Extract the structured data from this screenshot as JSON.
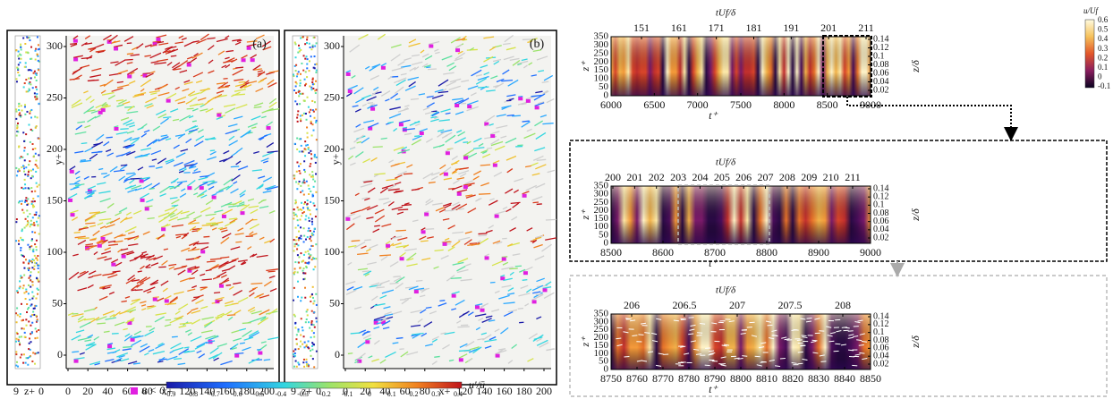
{
  "left_figure": {
    "panels": [
      {
        "label": "(a)",
        "y_label": "y+",
        "x_label": "x+",
        "strip_label": "z+",
        "strip_ticks": [
          9,
          0
        ],
        "y_ticks": [
          0,
          50,
          100,
          150,
          200,
          250,
          300
        ],
        "x_ticks": [
          0,
          20,
          40,
          60,
          80,
          120,
          140,
          160,
          180,
          200
        ]
      },
      {
        "label": "(b)",
        "y_label": "y+",
        "x_label": "x+",
        "strip_label": "z+",
        "strip_ticks": [
          9,
          0
        ],
        "y_ticks": [
          0,
          50,
          100,
          150,
          200,
          250,
          300
        ],
        "x_ticks": [
          0,
          20,
          40,
          60,
          80,
          120,
          140,
          160,
          180,
          200
        ]
      }
    ],
    "colorbar": {
      "negative_label": "u < 0",
      "label": "u′/ū",
      "ticks": [
        -0.9,
        -0.8,
        -0.7,
        -0.6,
        -0.5,
        -0.4,
        -0.3,
        -0.2,
        -0.1,
        0,
        0.1,
        0.2,
        0.3,
        0.4
      ]
    }
  },
  "right_figure": {
    "colorbar": {
      "label": "u/Uf",
      "ticks": [
        0.6,
        0.5,
        0.4,
        0.3,
        0.2,
        0.1,
        0,
        -0.1
      ]
    },
    "panels": [
      {
        "top_label": "tUf/δ",
        "top_ticks": [
          151,
          161,
          171,
          181,
          191,
          201,
          211
        ],
        "bottom_label": "t⁺",
        "bottom_ticks": [
          6000,
          6500,
          7000,
          7500,
          8000,
          8500,
          9000
        ],
        "left_label": "z⁺",
        "left_ticks": [
          0,
          50,
          100,
          150,
          200,
          250,
          300,
          350
        ],
        "right_label": "z/δ",
        "right_ticks": [
          0.02,
          0.04,
          0.06,
          0.08,
          0.1,
          0.12,
          0.14
        ]
      },
      {
        "top_label": "tUf/δ",
        "top_ticks": [
          200,
          201,
          202,
          203,
          204,
          205,
          206,
          207,
          208,
          209,
          210,
          211
        ],
        "bottom_label": "t⁺",
        "bottom_ticks": [
          8500,
          8600,
          8700,
          8800,
          8900,
          9000
        ],
        "left_label": "z⁺",
        "left_ticks": [
          0,
          50,
          100,
          150,
          200,
          250,
          300,
          350
        ],
        "right_label": "z/δ",
        "right_ticks": [
          0.02,
          0.04,
          0.06,
          0.08,
          0.1,
          0.12,
          0.14
        ]
      },
      {
        "top_label": "tUf/δ",
        "top_ticks": [
          206,
          206.5,
          207,
          207.5,
          208
        ],
        "bottom_label": "t⁺",
        "bottom_ticks": [
          8750,
          8760,
          8770,
          8780,
          8790,
          8800,
          8810,
          8820,
          8830,
          8840,
          8850
        ],
        "left_label": "z⁺",
        "left_ticks": [
          0,
          50,
          100,
          150,
          200,
          250,
          300,
          350
        ],
        "right_label": "z/δ",
        "right_ticks": [
          0.02,
          0.04,
          0.06,
          0.08,
          0.1,
          0.12,
          0.14
        ]
      }
    ]
  }
}
